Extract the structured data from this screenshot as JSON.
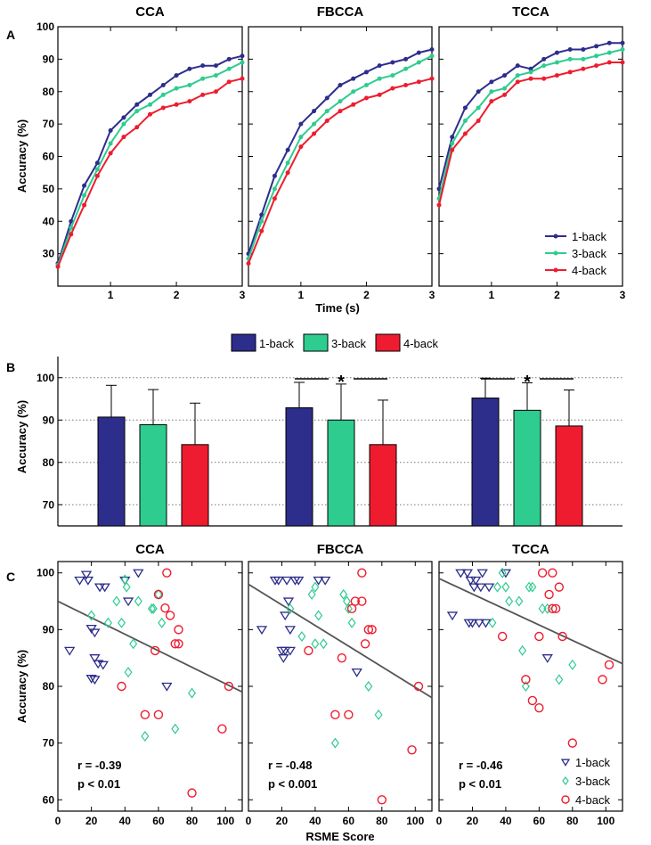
{
  "figure": {
    "panel_labels": [
      "A",
      "B",
      "C"
    ],
    "colors": {
      "n1": "#2d2d8c",
      "n3": "#2ecc8f",
      "n4": "#ee1c2e",
      "regression": "#555555"
    }
  },
  "chart_data": [
    {
      "panel": "A",
      "type": "line",
      "ylabel": "Accuracy (%)",
      "xlabel": "Time (s)",
      "xlim": [
        0.2,
        3
      ],
      "ylim": [
        20,
        100
      ],
      "yticks": [
        30,
        40,
        50,
        60,
        70,
        80,
        90,
        100
      ],
      "ytick_labels": [
        "30",
        "40",
        "50",
        "60",
        "70",
        "80",
        "90",
        "100"
      ],
      "xticks": [
        1,
        2,
        3
      ],
      "xtick_labels": [
        "1",
        "2",
        "3"
      ],
      "x": [
        0.2,
        0.4,
        0.6,
        0.8,
        1.0,
        1.2,
        1.4,
        1.6,
        1.8,
        2.0,
        2.2,
        2.4,
        2.6,
        2.8,
        3.0
      ],
      "legend_entries": [
        "1-back",
        "3-back",
        "4-back"
      ],
      "legend_position": "bottom-right of TCCA",
      "subplots": [
        {
          "title": "CCA",
          "series": [
            {
              "name": "1-back",
              "values": [
                27,
                40,
                51,
                58,
                68,
                72,
                76,
                79,
                82,
                85,
                87,
                88,
                88,
                90,
                91
              ]
            },
            {
              "name": "3-back",
              "values": [
                26.5,
                38,
                48,
                56,
                64,
                70,
                74,
                76,
                79,
                81,
                82,
                84,
                85,
                87,
                89
              ]
            },
            {
              "name": "4-back",
              "values": [
                26,
                36,
                45,
                54,
                61,
                66,
                69,
                73,
                75,
                76,
                77,
                79,
                80,
                83,
                84
              ]
            }
          ]
        },
        {
          "title": "FBCCA",
          "series": [
            {
              "name": "1-back",
              "values": [
                30,
                42,
                54,
                62,
                70,
                74,
                78,
                82,
                84,
                86,
                88,
                89,
                90,
                92,
                93
              ]
            },
            {
              "name": "3-back",
              "values": [
                28.5,
                40,
                50,
                58,
                66,
                70,
                74,
                77,
                80,
                82,
                84,
                85,
                87,
                89,
                91
              ]
            },
            {
              "name": "4-back",
              "values": [
                27,
                37,
                47,
                55,
                63,
                67,
                71,
                74,
                76,
                78,
                79,
                81,
                82,
                83,
                84
              ]
            }
          ]
        },
        {
          "title": "TCCA",
          "series": [
            {
              "name": "1-back",
              "values": [
                50,
                66,
                75,
                80,
                83,
                85,
                88,
                87,
                90,
                92,
                93,
                93,
                94,
                95,
                95
              ]
            },
            {
              "name": "3-back",
              "values": [
                47,
                64,
                71,
                75,
                80,
                81,
                85,
                86,
                88,
                89,
                90,
                90,
                91,
                92,
                93
              ]
            },
            {
              "name": "4-back",
              "values": [
                45,
                62,
                67,
                71,
                77,
                79,
                83,
                84,
                84,
                85,
                86,
                87,
                88,
                89,
                89
              ]
            }
          ]
        }
      ]
    },
    {
      "panel": "B",
      "type": "bar",
      "ylabel": "Accuracy (%)",
      "ylim": [
        65,
        105
      ],
      "yticks": [
        70,
        80,
        90,
        100
      ],
      "ytick_labels": [
        "70",
        "80",
        "90",
        "100"
      ],
      "grid": "horizontal dotted",
      "legend_entries": [
        "1-back",
        "3-back",
        "4-back"
      ],
      "legend_position": "top",
      "groups": [
        {
          "name": "CCA",
          "values": [
            90.7,
            88.9,
            84.2
          ],
          "errors": [
            7.5,
            8.3,
            9.8
          ],
          "significance": ""
        },
        {
          "name": "FBCCA",
          "values": [
            92.9,
            90.0,
            84.2
          ],
          "errors": [
            6.0,
            8.5,
            10.5
          ],
          "significance": "*"
        },
        {
          "name": "TCCA",
          "values": [
            95.2,
            92.3,
            88.6
          ],
          "errors": [
            4.7,
            6.5,
            8.5
          ],
          "significance": "*"
        }
      ]
    },
    {
      "panel": "C",
      "type": "scatter",
      "ylabel": "Accuracy (%)",
      "xlabel": "RSME Score",
      "xlim": [
        0,
        110
      ],
      "ylim": [
        58,
        102
      ],
      "yticks": [
        60,
        70,
        80,
        90,
        100
      ],
      "ytick_labels": [
        "60",
        "70",
        "80",
        "90",
        "100"
      ],
      "xticks": [
        0,
        20,
        40,
        60,
        80,
        100
      ],
      "xtick_labels": [
        "0",
        "20",
        "40",
        "60",
        "80",
        "100"
      ],
      "legend_entries": [
        "1-back",
        "3-back",
        "4-back"
      ],
      "legend_position": "bottom-right of TCCA",
      "subplots": [
        {
          "title": "CCA",
          "r_text": "r = -0.39",
          "p_text": "p < 0.01",
          "regression": {
            "x": [
              0,
              110
            ],
            "y": [
              95,
              79
            ]
          },
          "n1": [
            [
              7,
              86.3
            ],
            [
              13,
              98.7
            ],
            [
              17,
              99.7
            ],
            [
              18,
              98.7
            ],
            [
              20,
              90.2
            ],
            [
              22,
              89.5
            ],
            [
              20,
              81.4
            ],
            [
              22,
              81.2
            ],
            [
              22,
              85.0
            ],
            [
              24,
              84.0
            ],
            [
              25,
              97.5
            ],
            [
              27,
              83.8
            ],
            [
              28,
              97.5
            ],
            [
              40,
              98.7
            ],
            [
              42,
              95.0
            ],
            [
              48,
              100
            ],
            [
              65,
              80
            ]
          ],
          "n3": [
            [
              20,
              92.5
            ],
            [
              30,
              91.2
            ],
            [
              35,
              95.0
            ],
            [
              38,
              91.2
            ],
            [
              40,
              98.8
            ],
            [
              41,
              97.5
            ],
            [
              42,
              82.5
            ],
            [
              45,
              87.5
            ],
            [
              48,
              95.0
            ],
            [
              52,
              71.2
            ],
            [
              56,
              93.7
            ],
            [
              57,
              93.7
            ],
            [
              60,
              96.2
            ],
            [
              62,
              91.2
            ],
            [
              70,
              72.5
            ],
            [
              80,
              78.8
            ]
          ],
          "n4": [
            [
              38,
              80.0
            ],
            [
              52,
              75.0
            ],
            [
              58,
              86.3
            ],
            [
              60,
              96.2
            ],
            [
              60,
              75.0
            ],
            [
              64,
              93.8
            ],
            [
              65,
              100
            ],
            [
              67,
              92.5
            ],
            [
              70,
              87.5
            ],
            [
              72,
              87.5
            ],
            [
              72,
              90.0
            ],
            [
              80,
              61.2
            ],
            [
              98,
              72.5
            ],
            [
              102,
              80.0
            ]
          ]
        },
        {
          "title": "FBCCA",
          "r_text": "r = -0.48",
          "p_text": "p < 0.001",
          "regression": {
            "x": [
              0,
              110
            ],
            "y": [
              98,
              78
            ]
          },
          "n1": [
            [
              8,
              90.0
            ],
            [
              16,
              98.7
            ],
            [
              18,
              98.7
            ],
            [
              20,
              86.3
            ],
            [
              21,
              85.0
            ],
            [
              22,
              92.5
            ],
            [
              22,
              86.3
            ],
            [
              23,
              98.7
            ],
            [
              24,
              95.0
            ],
            [
              25,
              86.3
            ],
            [
              25,
              90.0
            ],
            [
              28,
              98.7
            ],
            [
              30,
              98.7
            ],
            [
              42,
              98.7
            ],
            [
              46,
              98.7
            ],
            [
              65,
              82.5
            ]
          ],
          "n3": [
            [
              25,
              93.7
            ],
            [
              32,
              88.8
            ],
            [
              38,
              96.2
            ],
            [
              40,
              97.5
            ],
            [
              40,
              87.5
            ],
            [
              42,
              92.5
            ],
            [
              45,
              87.5
            ],
            [
              52,
              70.0
            ],
            [
              57,
              96.2
            ],
            [
              59,
              95.0
            ],
            [
              60,
              93.7
            ],
            [
              62,
              91.2
            ],
            [
              72,
              80.0
            ],
            [
              78,
              75.0
            ]
          ],
          "n4": [
            [
              36,
              86.3
            ],
            [
              52,
              75.0
            ],
            [
              56,
              85.0
            ],
            [
              60,
              75.0
            ],
            [
              62,
              93.7
            ],
            [
              64,
              95.0
            ],
            [
              68,
              95.0
            ],
            [
              68,
              100
            ],
            [
              70,
              87.5
            ],
            [
              72,
              90.0
            ],
            [
              74,
              90.0
            ],
            [
              80,
              60.0
            ],
            [
              98,
              68.8
            ],
            [
              102,
              80.0
            ]
          ]
        },
        {
          "title": "TCCA",
          "r_text": "r = -0.46",
          "p_text": "p < 0.01",
          "regression": {
            "x": [
              0,
              110
            ],
            "y": [
              99,
              84
            ]
          },
          "n1": [
            [
              8,
              92.5
            ],
            [
              13,
              100
            ],
            [
              17,
              100
            ],
            [
              18,
              91.2
            ],
            [
              19,
              98.7
            ],
            [
              20,
              91.2
            ],
            [
              21,
              97.5
            ],
            [
              22,
              98.7
            ],
            [
              24,
              91.2
            ],
            [
              25,
              97.5
            ],
            [
              26,
              100
            ],
            [
              28,
              91.2
            ],
            [
              30,
              97.5
            ],
            [
              40,
              100
            ],
            [
              65,
              85.0
            ]
          ],
          "n3": [
            [
              32,
              91.2
            ],
            [
              35,
              97.5
            ],
            [
              38,
              100
            ],
            [
              40,
              97.5
            ],
            [
              42,
              95.0
            ],
            [
              48,
              95.0
            ],
            [
              50,
              86.3
            ],
            [
              52,
              80.0
            ],
            [
              54,
              97.5
            ],
            [
              56,
              97.5
            ],
            [
              62,
              93.7
            ],
            [
              65,
              93.7
            ],
            [
              72,
              81.2
            ],
            [
              80,
              83.8
            ]
          ],
          "n4": [
            [
              38,
              88.8
            ],
            [
              52,
              81.2
            ],
            [
              56,
              77.5
            ],
            [
              60,
              76.2
            ],
            [
              60,
              88.8
            ],
            [
              62,
              100
            ],
            [
              66,
              96.2
            ],
            [
              68,
              93.7
            ],
            [
              68,
              100
            ],
            [
              70,
              93.7
            ],
            [
              72,
              97.5
            ],
            [
              74,
              88.8
            ],
            [
              80,
              70.0
            ],
            [
              98,
              81.2
            ],
            [
              102,
              83.8
            ]
          ]
        }
      ]
    }
  ]
}
